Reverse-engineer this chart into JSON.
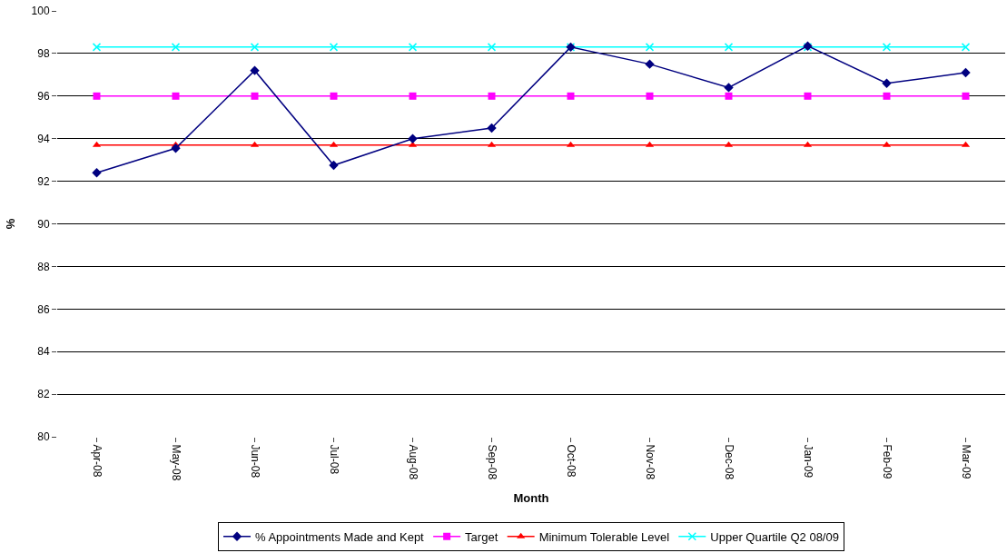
{
  "chart_data": {
    "type": "line",
    "xlabel": "Month",
    "ylabel": "%",
    "categories": [
      "Apr-08",
      "May-08",
      "Jun-08",
      "Jul-08",
      "Aug-08",
      "Sep-08",
      "Oct-08",
      "Nov-08",
      "Dec-08",
      "Jan-09",
      "Feb-09",
      "Mar-09"
    ],
    "series": [
      {
        "name": "% Appointments Made and Kept",
        "color": "#000080",
        "marker": "diamond",
        "values": [
          92.4,
          93.55,
          97.2,
          92.75,
          94.0,
          94.5,
          98.3,
          97.5,
          96.4,
          98.35,
          96.6,
          97.1
        ]
      },
      {
        "name": "Target",
        "color": "#ff00ff",
        "marker": "square",
        "values": [
          96,
          96,
          96,
          96,
          96,
          96,
          96,
          96,
          96,
          96,
          96,
          96
        ]
      },
      {
        "name": "Minimum Tolerable Level",
        "color": "#ff0000",
        "marker": "triangle",
        "values": [
          93.7,
          93.7,
          93.7,
          93.7,
          93.7,
          93.7,
          93.7,
          93.7,
          93.7,
          93.7,
          93.7,
          93.7
        ]
      },
      {
        "name": "Upper Quartile Q2 08/09",
        "color": "#00ffff",
        "marker": "cross",
        "values": [
          98.3,
          98.3,
          98.3,
          98.3,
          98.3,
          98.3,
          98.3,
          98.3,
          98.3,
          98.3,
          98.3,
          98.3
        ]
      }
    ],
    "ylim": [
      80,
      100
    ],
    "yticks": [
      80,
      82,
      84,
      86,
      88,
      90,
      92,
      94,
      96,
      98,
      100
    ],
    "grid": "y",
    "legend": "bottom",
    "line_style": "solid"
  }
}
